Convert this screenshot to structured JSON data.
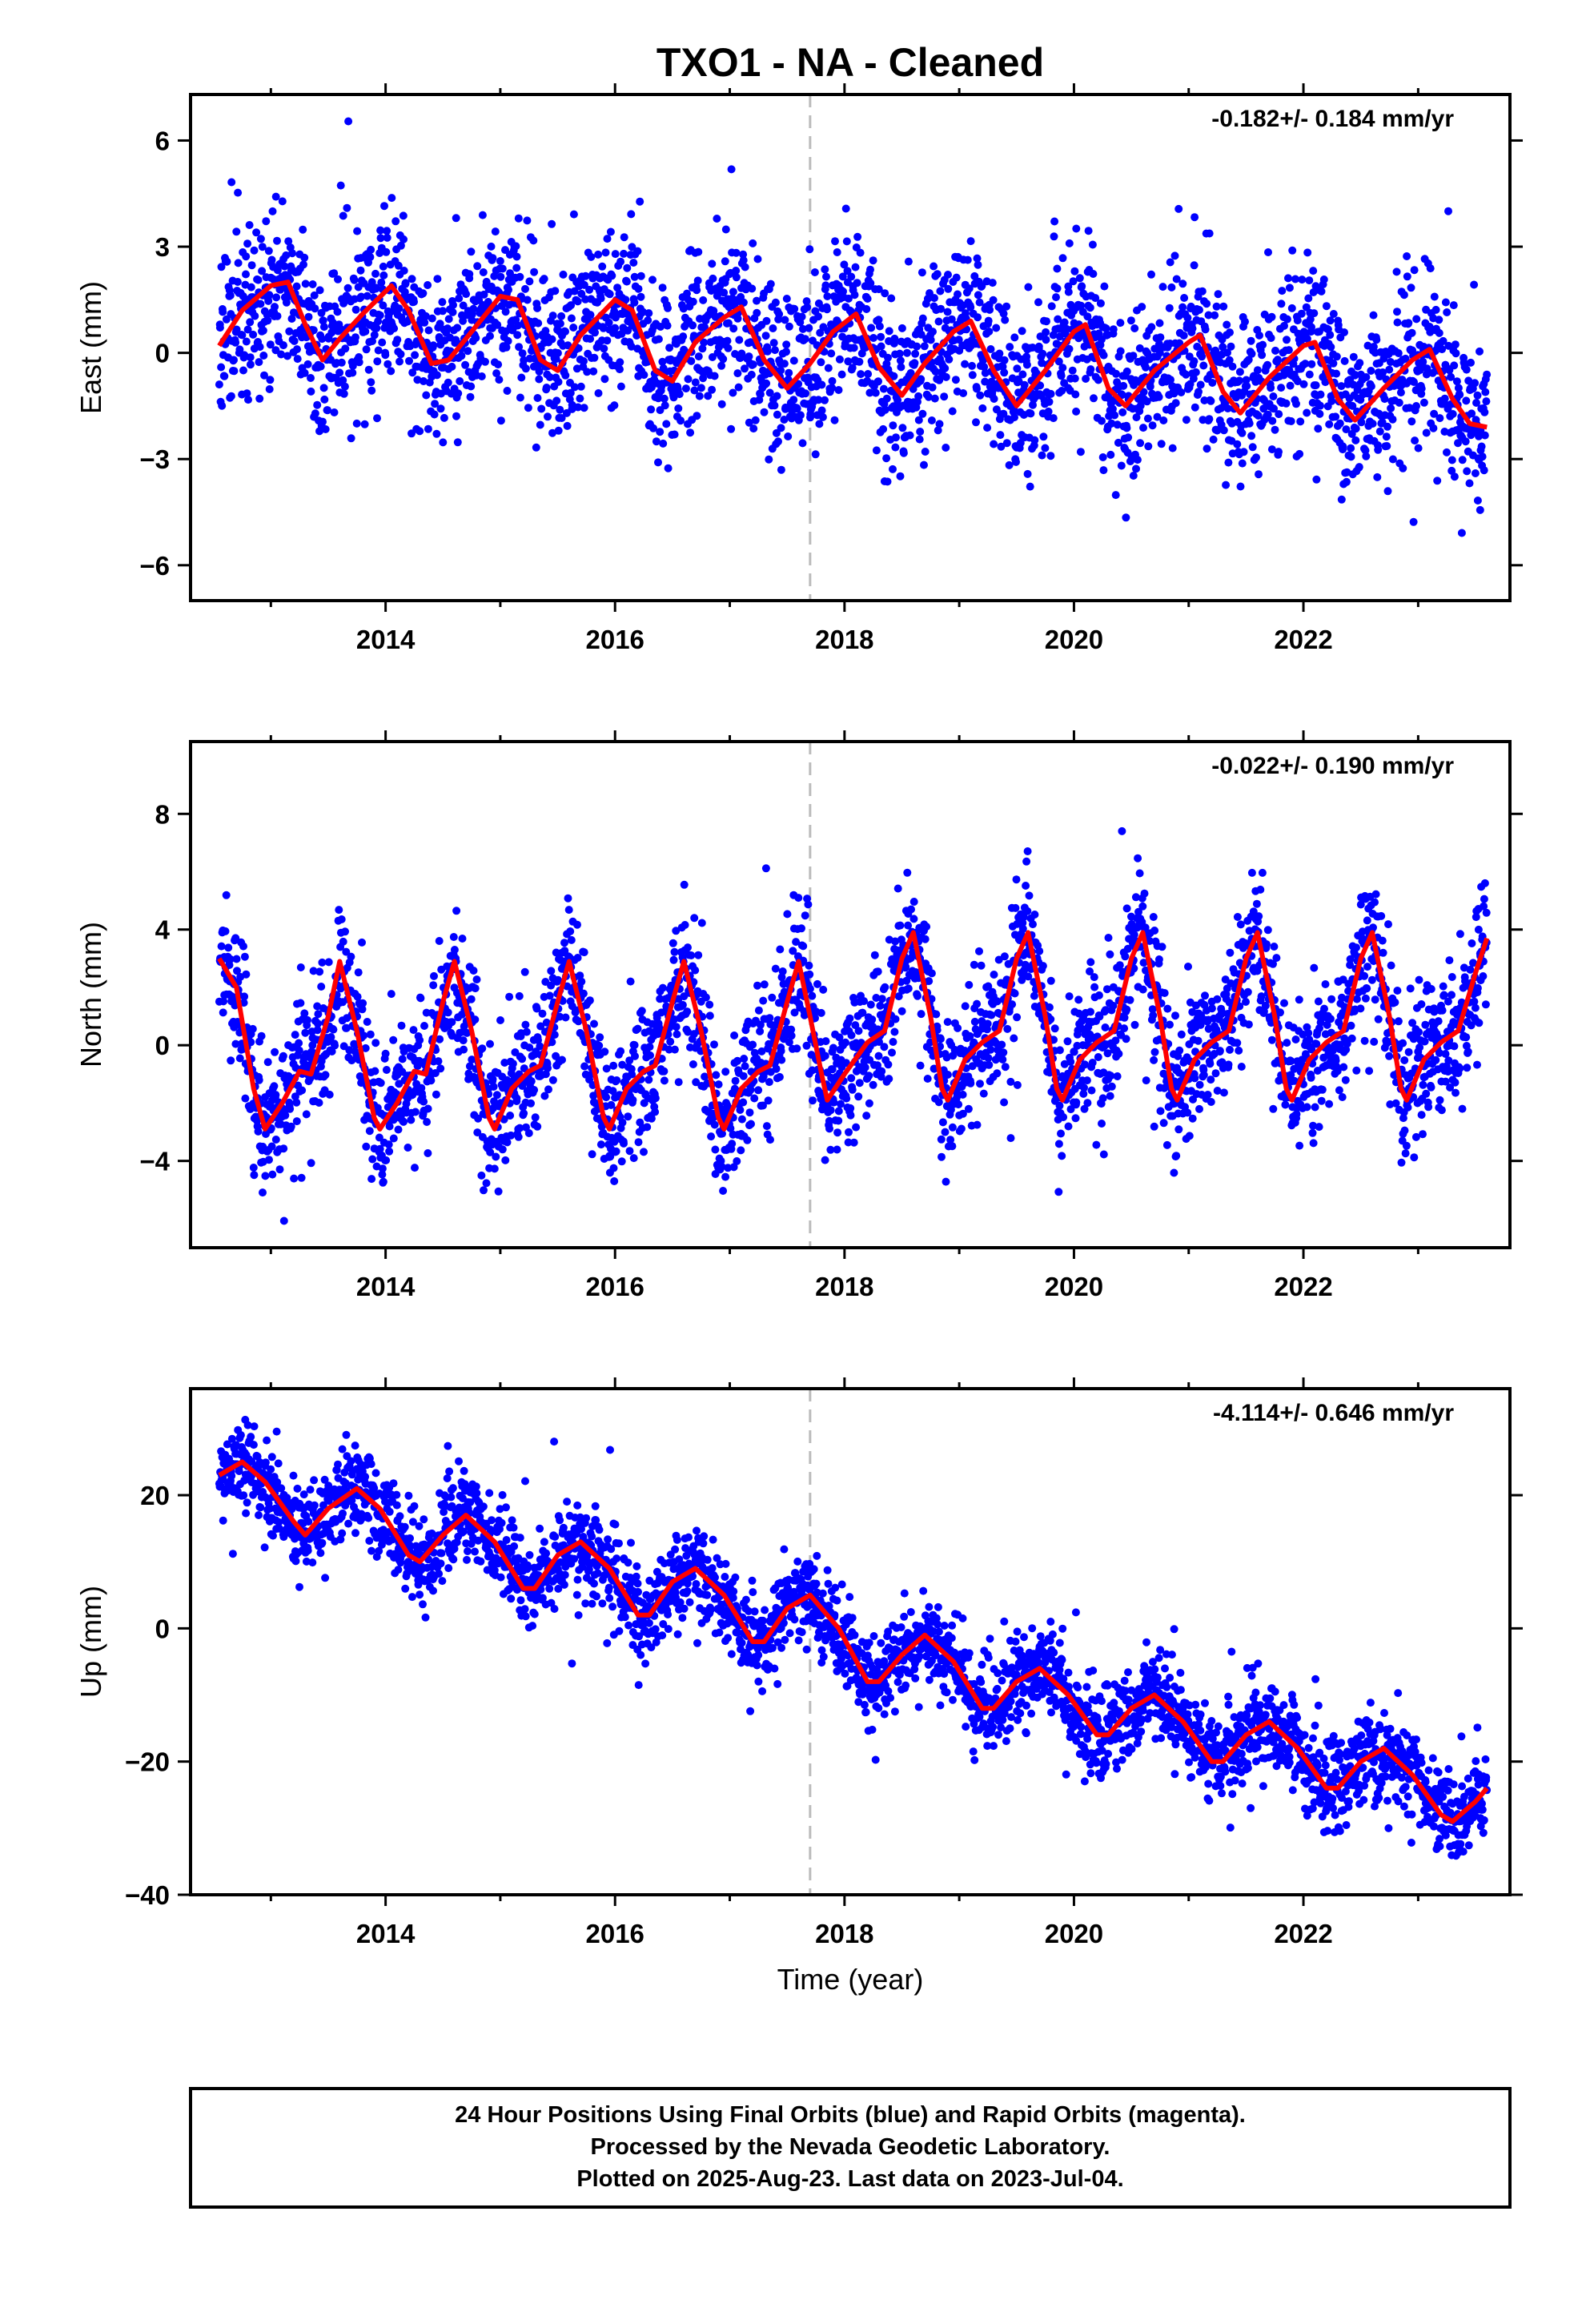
{
  "title": "TXO1  - NA - Cleaned",
  "xlabel": "Time (year)",
  "footer": {
    "line1": "24 Hour Positions Using Final Orbits (blue) and Rapid Orbits (magenta).",
    "line2": "Processed by the Nevada Geodetic Laboratory.",
    "line3": "Plotted on 2025-Aug-23. Last data on 2023-Jul-04."
  },
  "colors": {
    "points": "#0000ff",
    "model": "#ff0000",
    "break_line": "#bbbbbb"
  },
  "chart_data": [
    {
      "type": "scatter",
      "name": "east",
      "ylabel": "East (mm)",
      "rate": "-0.182+/- 0.184 mm/yr",
      "xlim": [
        2012.3,
        2023.8
      ],
      "ylim": [
        -7,
        7.3
      ],
      "yticks": [
        6,
        3,
        0,
        -3,
        -6
      ],
      "xticks": [
        2014,
        2016,
        2018,
        2020,
        2022
      ],
      "break_year": 2017.7,
      "model_curve": [
        [
          2012.55,
          0.2
        ],
        [
          2012.75,
          1.2
        ],
        [
          2013.0,
          1.9
        ],
        [
          2013.15,
          2.0
        ],
        [
          2013.3,
          0.8
        ],
        [
          2013.45,
          -0.2
        ],
        [
          2013.6,
          0.4
        ],
        [
          2013.8,
          1.1
        ],
        [
          2014.05,
          1.9
        ],
        [
          2014.2,
          1.2
        ],
        [
          2014.4,
          -0.3
        ],
        [
          2014.55,
          -0.2
        ],
        [
          2014.75,
          0.6
        ],
        [
          2015.0,
          1.6
        ],
        [
          2015.15,
          1.5
        ],
        [
          2015.35,
          -0.2
        ],
        [
          2015.5,
          -0.5
        ],
        [
          2015.7,
          0.5
        ],
        [
          2016.0,
          1.5
        ],
        [
          2016.15,
          1.2
        ],
        [
          2016.35,
          -0.5
        ],
        [
          2016.5,
          -0.8
        ],
        [
          2016.7,
          0.3
        ],
        [
          2016.95,
          1.0
        ],
        [
          2017.1,
          1.3
        ],
        [
          2017.3,
          -0.2
        ],
        [
          2017.5,
          -1.0
        ],
        [
          2017.7,
          -0.3
        ],
        [
          2017.9,
          0.6
        ],
        [
          2018.1,
          1.1
        ],
        [
          2018.3,
          -0.4
        ],
        [
          2018.5,
          -1.2
        ],
        [
          2018.7,
          -0.3
        ],
        [
          2018.95,
          0.6
        ],
        [
          2019.1,
          0.9
        ],
        [
          2019.3,
          -0.5
        ],
        [
          2019.5,
          -1.5
        ],
        [
          2019.75,
          -0.5
        ],
        [
          2020.0,
          0.6
        ],
        [
          2020.1,
          0.8
        ],
        [
          2020.3,
          -1.0
        ],
        [
          2020.45,
          -1.5
        ],
        [
          2020.7,
          -0.5
        ],
        [
          2021.0,
          0.3
        ],
        [
          2021.1,
          0.5
        ],
        [
          2021.3,
          -1.1
        ],
        [
          2021.45,
          -1.7
        ],
        [
          2021.7,
          -0.7
        ],
        [
          2022.0,
          0.2
        ],
        [
          2022.1,
          0.3
        ],
        [
          2022.3,
          -1.3
        ],
        [
          2022.45,
          -1.9
        ],
        [
          2022.7,
          -1.0
        ],
        [
          2022.95,
          -0.2
        ],
        [
          2023.1,
          0.1
        ],
        [
          2023.3,
          -1.3
        ],
        [
          2023.45,
          -2.0
        ],
        [
          2023.6,
          -2.1
        ]
      ],
      "point_model": {
        "seed": 11,
        "count": 3000,
        "start": 2012.55,
        "end": 2023.6,
        "trend": -0.182,
        "amp": 1.6,
        "phase": 0.1,
        "noise": 1.15
      }
    },
    {
      "type": "scatter",
      "name": "north",
      "ylabel": "North (mm)",
      "rate": "-0.022+/- 0.190 mm/yr",
      "xlim": [
        2012.3,
        2023.8
      ],
      "ylim": [
        -7,
        10.5
      ],
      "yticks": [
        8,
        4,
        0,
        -4
      ],
      "xticks": [
        2014,
        2016,
        2018,
        2020,
        2022
      ],
      "break_year": 2017.7,
      "model_curve": [
        [
          2012.55,
          3.0
        ],
        [
          2012.7,
          2.0
        ],
        [
          2012.85,
          -1.5
        ],
        [
          2012.95,
          -2.9
        ],
        [
          2013.1,
          -2.0
        ],
        [
          2013.25,
          -0.9
        ],
        [
          2013.35,
          -1.0
        ],
        [
          2013.5,
          1.0
        ],
        [
          2013.6,
          2.9
        ],
        [
          2013.75,
          0.5
        ],
        [
          2013.9,
          -2.5
        ],
        [
          2013.95,
          -2.9
        ],
        [
          2014.1,
          -2.0
        ],
        [
          2014.25,
          -0.9
        ],
        [
          2014.35,
          -1.0
        ],
        [
          2014.5,
          1.5
        ],
        [
          2014.6,
          2.9
        ],
        [
          2014.75,
          0.5
        ],
        [
          2014.9,
          -2.5
        ],
        [
          2014.95,
          -2.9
        ],
        [
          2015.1,
          -1.5
        ],
        [
          2015.25,
          -0.9
        ],
        [
          2015.35,
          -0.7
        ],
        [
          2015.5,
          1.5
        ],
        [
          2015.6,
          2.9
        ],
        [
          2015.75,
          0.5
        ],
        [
          2015.9,
          -2.5
        ],
        [
          2015.95,
          -2.9
        ],
        [
          2016.1,
          -1.5
        ],
        [
          2016.25,
          -0.9
        ],
        [
          2016.35,
          -0.7
        ],
        [
          2016.5,
          1.5
        ],
        [
          2016.6,
          2.9
        ],
        [
          2016.75,
          0.5
        ],
        [
          2016.9,
          -2.5
        ],
        [
          2016.95,
          -2.9
        ],
        [
          2017.1,
          -1.5
        ],
        [
          2017.25,
          -0.9
        ],
        [
          2017.35,
          -0.7
        ],
        [
          2017.5,
          1.5
        ],
        [
          2017.6,
          2.9
        ],
        [
          2017.7,
          1.0
        ],
        [
          2017.8,
          -1.0
        ],
        [
          2017.85,
          -1.9
        ],
        [
          2018.0,
          -1.0
        ],
        [
          2018.2,
          0.1
        ],
        [
          2018.35,
          0.5
        ],
        [
          2018.5,
          3.0
        ],
        [
          2018.6,
          3.9
        ],
        [
          2018.75,
          1.0
        ],
        [
          2018.85,
          -1.5
        ],
        [
          2018.9,
          -1.9
        ],
        [
          2019.05,
          -0.5
        ],
        [
          2019.2,
          0.1
        ],
        [
          2019.35,
          0.5
        ],
        [
          2019.5,
          3.0
        ],
        [
          2019.6,
          3.9
        ],
        [
          2019.75,
          1.0
        ],
        [
          2019.85,
          -1.5
        ],
        [
          2019.9,
          -1.9
        ],
        [
          2020.05,
          -0.5
        ],
        [
          2020.2,
          0.1
        ],
        [
          2020.35,
          0.5
        ],
        [
          2020.5,
          3.0
        ],
        [
          2020.6,
          3.9
        ],
        [
          2020.75,
          1.0
        ],
        [
          2020.85,
          -1.5
        ],
        [
          2020.9,
          -1.9
        ],
        [
          2021.05,
          -0.5
        ],
        [
          2021.2,
          0.1
        ],
        [
          2021.35,
          0.5
        ],
        [
          2021.5,
          3.0
        ],
        [
          2021.6,
          3.9
        ],
        [
          2021.75,
          1.0
        ],
        [
          2021.85,
          -1.5
        ],
        [
          2021.9,
          -1.9
        ],
        [
          2022.05,
          -0.5
        ],
        [
          2022.2,
          0.1
        ],
        [
          2022.35,
          0.5
        ],
        [
          2022.5,
          3.0
        ],
        [
          2022.6,
          3.9
        ],
        [
          2022.75,
          1.0
        ],
        [
          2022.85,
          -1.5
        ],
        [
          2022.9,
          -1.9
        ],
        [
          2023.05,
          -0.5
        ],
        [
          2023.2,
          0.1
        ],
        [
          2023.35,
          0.5
        ],
        [
          2023.5,
          2.5
        ],
        [
          2023.6,
          3.7
        ]
      ],
      "point_model": {
        "seed": 23,
        "count": 3000,
        "start": 2012.55,
        "end": 2023.6,
        "trend": 0.0,
        "amp": 0.0,
        "phase": 0.0,
        "noise": 1.15
      }
    },
    {
      "type": "scatter",
      "name": "up",
      "ylabel": "Up (mm)",
      "rate": "-4.114+/- 0.646 mm/yr",
      "xlim": [
        2012.3,
        2023.8
      ],
      "ylim": [
        -40,
        36
      ],
      "yticks": [
        20,
        0,
        -20,
        -40
      ],
      "xticks": [
        2014,
        2016,
        2018,
        2020,
        2022
      ],
      "break_year": 2017.7,
      "model_curve": [
        [
          2012.55,
          23
        ],
        [
          2012.75,
          25
        ],
        [
          2012.95,
          22
        ],
        [
          2013.2,
          16
        ],
        [
          2013.3,
          14
        ],
        [
          2013.5,
          18
        ],
        [
          2013.75,
          21
        ],
        [
          2013.95,
          18
        ],
        [
          2014.2,
          11
        ],
        [
          2014.3,
          10
        ],
        [
          2014.5,
          14
        ],
        [
          2014.7,
          17
        ],
        [
          2014.95,
          13
        ],
        [
          2015.2,
          6
        ],
        [
          2015.3,
          6
        ],
        [
          2015.5,
          11
        ],
        [
          2015.7,
          13
        ],
        [
          2015.95,
          9
        ],
        [
          2016.2,
          2
        ],
        [
          2016.3,
          2
        ],
        [
          2016.5,
          7
        ],
        [
          2016.7,
          9
        ],
        [
          2016.95,
          5
        ],
        [
          2017.2,
          -2
        ],
        [
          2017.3,
          -2
        ],
        [
          2017.5,
          3
        ],
        [
          2017.7,
          5
        ],
        [
          2017.95,
          0
        ],
        [
          2018.2,
          -8
        ],
        [
          2018.3,
          -8
        ],
        [
          2018.5,
          -4
        ],
        [
          2018.7,
          -1
        ],
        [
          2018.95,
          -5
        ],
        [
          2019.2,
          -12
        ],
        [
          2019.3,
          -12
        ],
        [
          2019.5,
          -8
        ],
        [
          2019.7,
          -6
        ],
        [
          2019.95,
          -10
        ],
        [
          2020.2,
          -16
        ],
        [
          2020.3,
          -16
        ],
        [
          2020.5,
          -12
        ],
        [
          2020.7,
          -10
        ],
        [
          2020.95,
          -14
        ],
        [
          2021.2,
          -20
        ],
        [
          2021.3,
          -20
        ],
        [
          2021.5,
          -16
        ],
        [
          2021.7,
          -14
        ],
        [
          2021.95,
          -18
        ],
        [
          2022.2,
          -24
        ],
        [
          2022.3,
          -24
        ],
        [
          2022.5,
          -20
        ],
        [
          2022.7,
          -18
        ],
        [
          2022.95,
          -22
        ],
        [
          2023.2,
          -28
        ],
        [
          2023.3,
          -29
        ],
        [
          2023.5,
          -26
        ],
        [
          2023.6,
          -24
        ]
      ],
      "point_model": {
        "seed": 37,
        "count": 3000,
        "start": 2012.55,
        "end": 2023.6,
        "trend": -4.114,
        "amp": 0.0,
        "phase": 0.0,
        "noise": 3.3
      }
    }
  ]
}
